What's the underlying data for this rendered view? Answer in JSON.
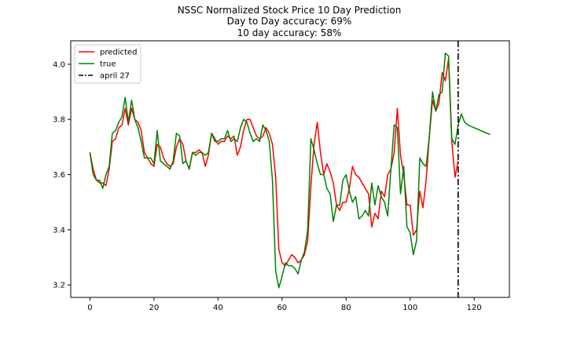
{
  "chart_data": {
    "type": "line",
    "title": "NSSC Normalized Stock Price 10 Day Prediction",
    "subtitle_lines": [
      "Day to Day accuracy: 69%",
      "10 day accuracy: 58%"
    ],
    "xlabel": "",
    "ylabel": "",
    "xlim": [
      -6,
      131
    ],
    "ylim": [
      3.155,
      4.085
    ],
    "x_ticks": [
      0,
      20,
      40,
      60,
      80,
      100,
      120
    ],
    "x_tick_labels": [
      "0",
      "20",
      "40",
      "60",
      "80",
      "100",
      "120"
    ],
    "y_ticks": [
      3.2,
      3.4,
      3.6,
      3.8,
      4.0
    ],
    "y_tick_labels": [
      "3.2",
      "3.4",
      "3.6",
      "3.8",
      "4.0"
    ],
    "grid": false,
    "legend_position": "upper-left",
    "series": [
      {
        "name": "predicted",
        "color": "#ff0000",
        "x_start": 0,
        "values": [
          3.68,
          3.62,
          3.58,
          3.57,
          3.57,
          3.56,
          3.62,
          3.72,
          3.73,
          3.77,
          3.78,
          3.84,
          3.78,
          3.84,
          3.8,
          3.79,
          3.76,
          3.68,
          3.66,
          3.64,
          3.63,
          3.71,
          3.7,
          3.66,
          3.64,
          3.63,
          3.64,
          3.7,
          3.73,
          3.71,
          3.65,
          3.62,
          3.68,
          3.68,
          3.69,
          3.68,
          3.63,
          3.67,
          3.75,
          3.73,
          3.71,
          3.72,
          3.72,
          3.74,
          3.73,
          3.74,
          3.67,
          3.7,
          3.76,
          3.8,
          3.8,
          3.77,
          3.74,
          3.73,
          3.74,
          3.77,
          3.75,
          3.71,
          3.59,
          3.33,
          3.28,
          3.27,
          3.29,
          3.31,
          3.3,
          3.28,
          3.29,
          3.31,
          3.36,
          3.56,
          3.71,
          3.79,
          3.68,
          3.6,
          3.64,
          3.61,
          3.57,
          3.49,
          3.47,
          3.5,
          3.5,
          3.55,
          3.63,
          3.6,
          3.59,
          3.57,
          3.55,
          3.53,
          3.41,
          3.46,
          3.44,
          3.54,
          3.52,
          3.6,
          3.62,
          3.68,
          3.84,
          3.67,
          3.6,
          3.49,
          3.49,
          3.38,
          3.4,
          3.54,
          3.48,
          3.58,
          3.74,
          3.87,
          3.83,
          3.86,
          3.97,
          3.94,
          4.02,
          3.72,
          3.59,
          3.65
        ]
      },
      {
        "name": "true",
        "color": "#008000",
        "x_start": 0,
        "values": [
          3.68,
          3.6,
          3.58,
          3.58,
          3.55,
          3.6,
          3.63,
          3.75,
          3.76,
          3.79,
          3.81,
          3.88,
          3.79,
          3.87,
          3.8,
          3.77,
          3.72,
          3.66,
          3.66,
          3.66,
          3.64,
          3.76,
          3.65,
          3.64,
          3.63,
          3.62,
          3.65,
          3.75,
          3.74,
          3.64,
          3.65,
          3.62,
          3.68,
          3.67,
          3.68,
          3.68,
          3.67,
          3.68,
          3.75,
          3.72,
          3.72,
          3.73,
          3.73,
          3.76,
          3.72,
          3.73,
          3.72,
          3.77,
          3.8,
          3.79,
          3.75,
          3.72,
          3.73,
          3.72,
          3.78,
          3.76,
          3.72,
          3.58,
          3.25,
          3.19,
          3.23,
          3.28,
          3.27,
          3.27,
          3.26,
          3.24,
          3.29,
          3.32,
          3.4,
          3.73,
          3.69,
          3.64,
          3.6,
          3.6,
          3.55,
          3.53,
          3.43,
          3.49,
          3.49,
          3.58,
          3.6,
          3.54,
          3.5,
          3.52,
          3.44,
          3.45,
          3.47,
          3.45,
          3.57,
          3.49,
          3.56,
          3.52,
          3.5,
          3.45,
          3.62,
          3.78,
          3.77,
          3.53,
          3.63,
          3.41,
          3.39,
          3.31,
          3.36,
          3.66,
          3.64,
          3.63,
          3.74,
          3.9,
          3.83,
          3.89,
          3.9,
          4.04,
          4.03,
          3.73,
          3.71,
          3.78,
          3.82,
          3.79,
          3.78,
          3.775,
          3.77,
          3.765,
          3.76,
          3.755,
          3.75,
          3.745
        ]
      }
    ],
    "vline": {
      "label": "april 27",
      "x": 115,
      "color": "#000000",
      "style": "dash-dot"
    }
  }
}
